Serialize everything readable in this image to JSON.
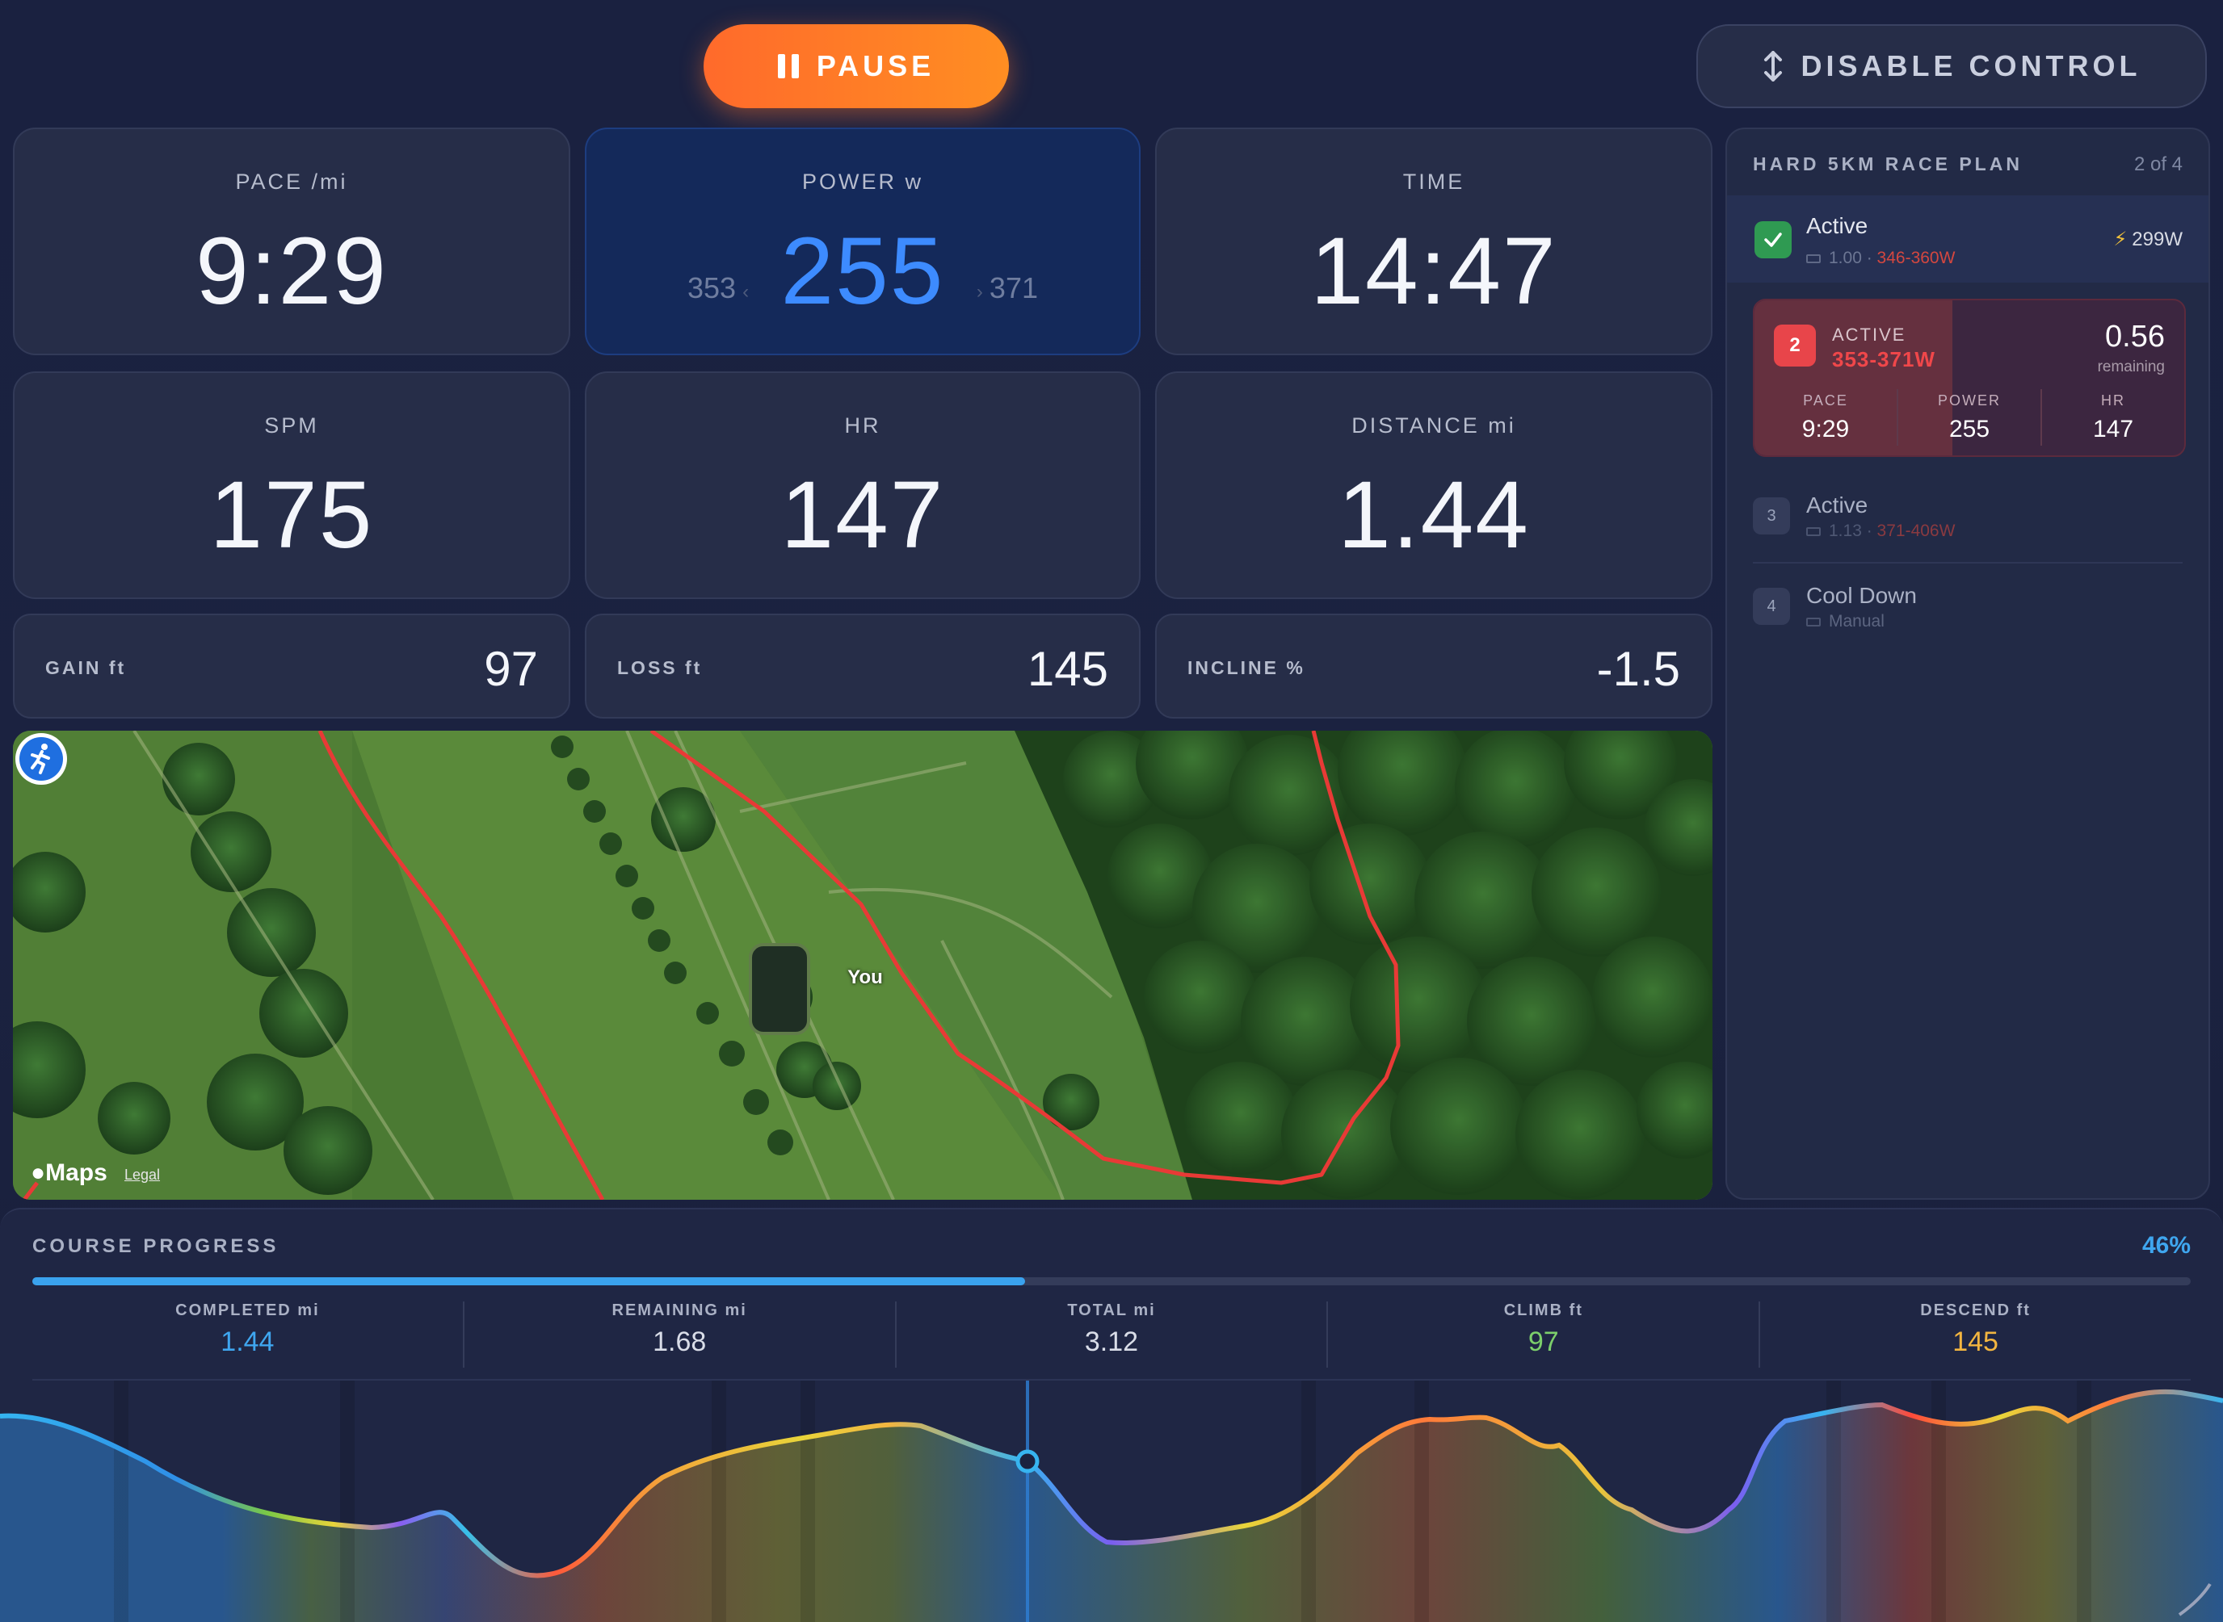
{
  "controls": {
    "pause_label": "PAUSE",
    "disable_label": "DISABLE CONTROL"
  },
  "metrics": {
    "pace": {
      "label": "PACE /mi",
      "value": "9:29"
    },
    "power": {
      "label": "POWER w",
      "value": "255",
      "low": "353",
      "high": "371"
    },
    "time": {
      "label": "TIME",
      "value": "14:47"
    },
    "spm": {
      "label": "SPM",
      "value": "175"
    },
    "hr": {
      "label": "HR",
      "value": "147"
    },
    "distance": {
      "label": "DISTANCE mi",
      "value": "1.44"
    },
    "gain": {
      "label": "GAIN ft",
      "value": "97"
    },
    "loss": {
      "label": "LOSS ft",
      "value": "145"
    },
    "incline": {
      "label": "INCLINE %",
      "value": "-1.5"
    }
  },
  "map": {
    "you_label": "You",
    "logo": "Maps",
    "legal": "Legal"
  },
  "plan": {
    "title": "HARD 5KM RACE PLAN",
    "count": "2 of 4",
    "steps": [
      {
        "name": "Active",
        "distance": "1.00",
        "range": "346-360W",
        "badge": "299W"
      },
      {
        "number": "2",
        "label": "ACTIVE",
        "range": "353-371W",
        "remaining_value": "0.56",
        "remaining_label": "remaining",
        "fill": 0.46,
        "stats": [
          {
            "k": "PACE",
            "v": "9:29"
          },
          {
            "k": "POWER",
            "v": "255"
          },
          {
            "k": "HR",
            "v": "147"
          }
        ]
      },
      {
        "number": "3",
        "name": "Active",
        "distance": "1.13",
        "range": "371-406W"
      },
      {
        "number": "4",
        "name": "Cool Down",
        "sub": "Manual"
      }
    ]
  },
  "course": {
    "title": "COURSE PROGRESS",
    "percent_label": "46%",
    "progress": 0.46,
    "stats": [
      {
        "k": "COMPLETED mi",
        "v": "1.44",
        "color": "#3fa6ef"
      },
      {
        "k": "REMAINING mi",
        "v": "1.68",
        "color": "#d9dde8"
      },
      {
        "k": "TOTAL mi",
        "v": "3.12",
        "color": "#d9dde8"
      },
      {
        "k": "CLIMB ft",
        "v": "97",
        "color": "#7ccf6b"
      },
      {
        "k": "DESCEND ft",
        "v": "145",
        "color": "#f2b540"
      }
    ]
  },
  "colors": {
    "accent": "#3d8bff",
    "pause": "#ff7a27",
    "danger": "#e8454a",
    "success": "#2f9a52"
  }
}
